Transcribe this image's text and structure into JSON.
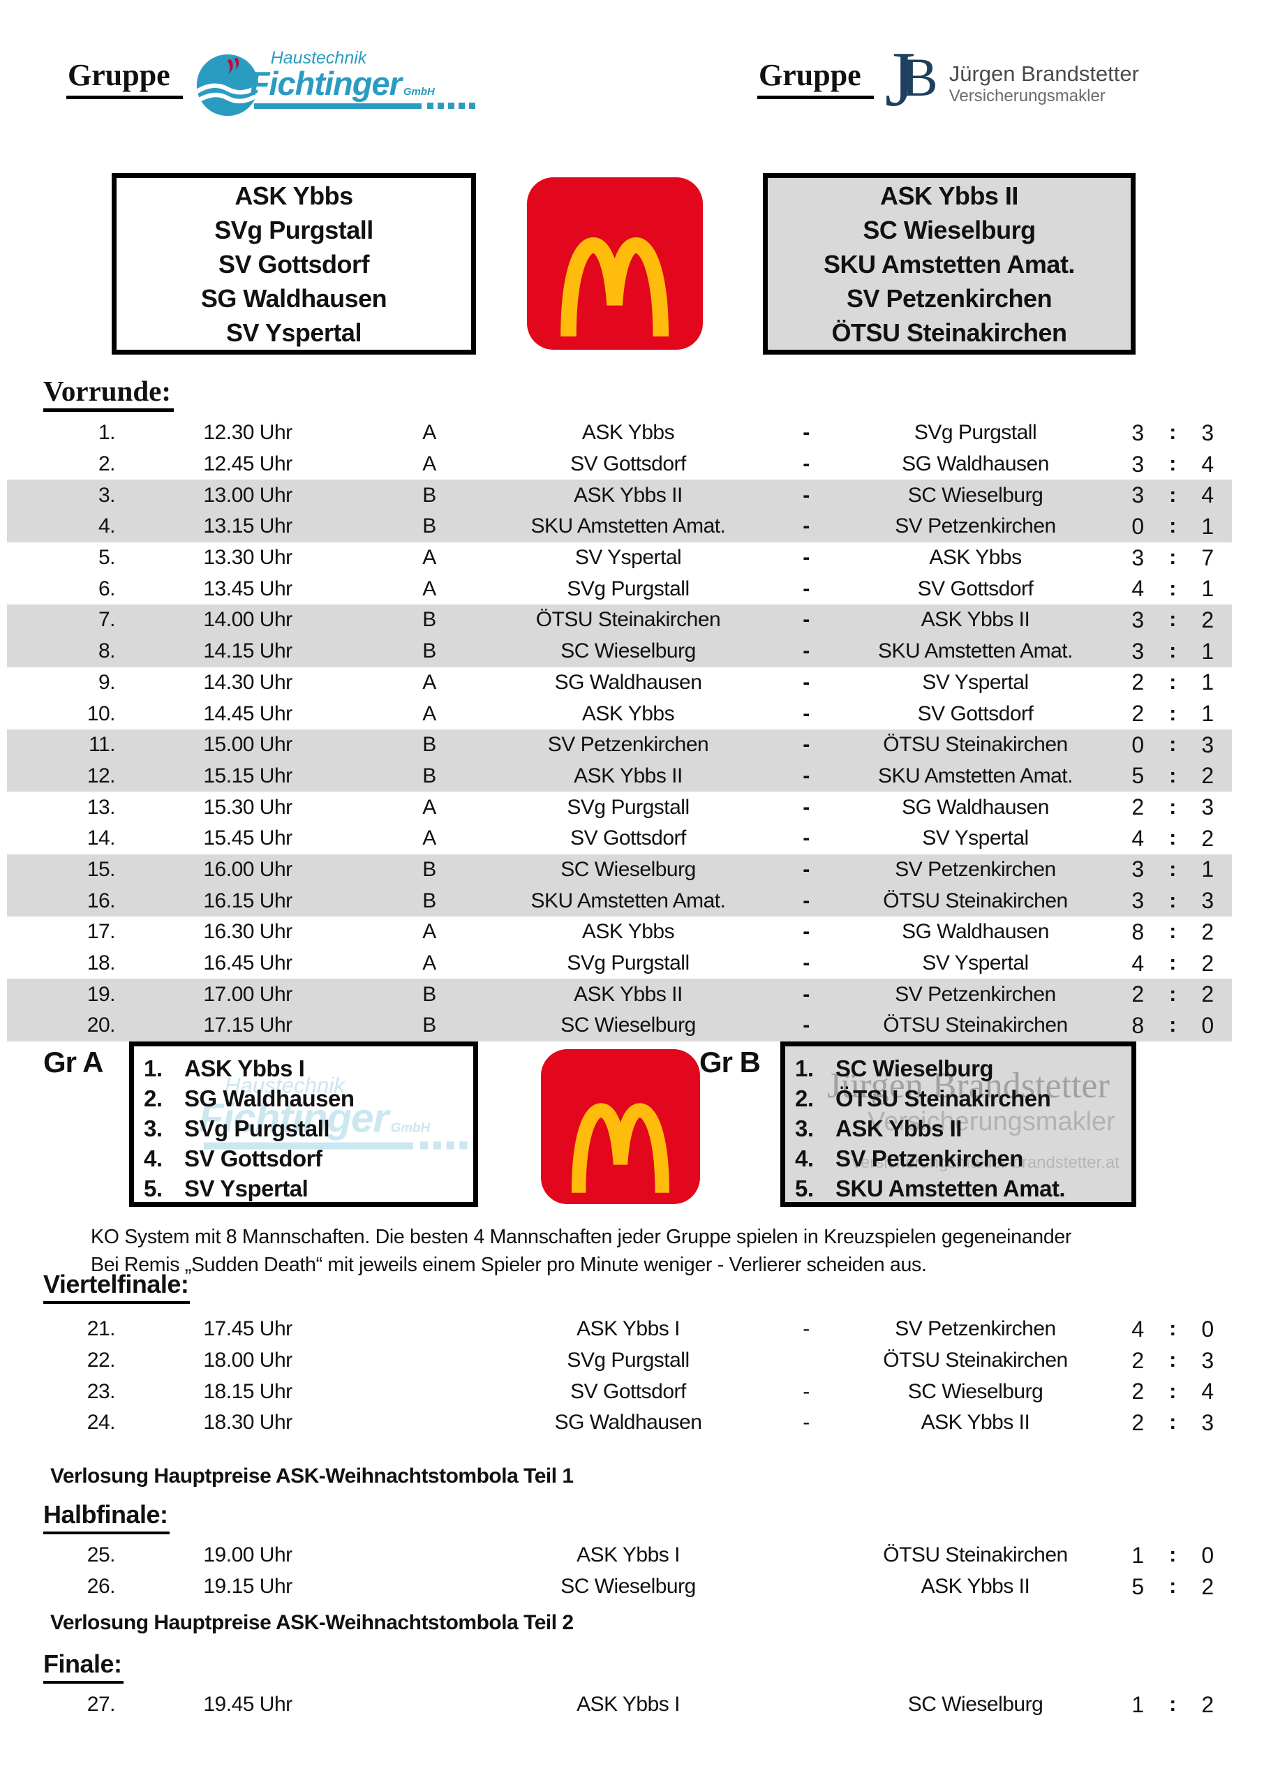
{
  "score_separator": ":",
  "colors": {
    "row_shade": "#d9d9d9",
    "mcdonalds_red": "#e2071c",
    "mcdonalds_yellow": "#ffbc0d",
    "fichtinger_blue": "#2a9cc2",
    "fichtinger_red": "#c00934",
    "jb_navy": "#1e3f5e",
    "watermark_blue": "#8ecbe0",
    "watermark_gray": "#8f8f8f",
    "text_black": "#111111"
  },
  "header": {
    "left": {
      "label": "Gruppe",
      "sponsor_line1": "Haustechnik",
      "sponsor_name": "Fichtinger",
      "sponsor_suffix": "GmbH"
    },
    "right": {
      "label": "Gruppe",
      "monogram_j": "J",
      "monogram_b": "B",
      "sponsor_name": "Jürgen Brandstetter",
      "sponsor_subtitle": "Versicherungsmakler"
    }
  },
  "group_boxes": {
    "a": [
      "ASK Ybbs",
      "SVg Purgstall",
      "SV Gottsdorf",
      "SG Waldhausen",
      "SV Yspertal"
    ],
    "b": [
      "ASK Ybbs II",
      "SC Wieselburg",
      "SKU Amstetten Amat.",
      "SV Petzenkirchen",
      "ÖTSU Steinakirchen"
    ]
  },
  "vorrunde": {
    "title": "Vorrunde:",
    "matches": [
      {
        "no": "1.",
        "time": "12.30 Uhr",
        "group": "A",
        "home": "ASK Ybbs",
        "sep": "-",
        "away": "SVg Purgstall",
        "s1": "3",
        "s2": "3"
      },
      {
        "no": "2.",
        "time": "12.45 Uhr",
        "group": "A",
        "home": "SV Gottsdorf",
        "sep": "-",
        "away": "SG Waldhausen",
        "s1": "3",
        "s2": "4"
      },
      {
        "no": "3.",
        "time": "13.00 Uhr",
        "group": "B",
        "home": "ASK Ybbs II",
        "sep": "-",
        "away": "SC Wieselburg",
        "s1": "3",
        "s2": "4"
      },
      {
        "no": "4.",
        "time": "13.15 Uhr",
        "group": "B",
        "home": "SKU Amstetten Amat.",
        "sep": "-",
        "away": "SV Petzenkirchen",
        "s1": "0",
        "s2": "1"
      },
      {
        "no": "5.",
        "time": "13.30 Uhr",
        "group": "A",
        "home": "SV Yspertal",
        "sep": "-",
        "away": "ASK Ybbs",
        "s1": "3",
        "s2": "7"
      },
      {
        "no": "6.",
        "time": "13.45 Uhr",
        "group": "A",
        "home": "SVg Purgstall",
        "sep": "-",
        "away": "SV Gottsdorf",
        "s1": "4",
        "s2": "1"
      },
      {
        "no": "7.",
        "time": "14.00 Uhr",
        "group": "B",
        "home": "ÖTSU Steinakirchen",
        "sep": "-",
        "away": "ASK Ybbs II",
        "s1": "3",
        "s2": "2"
      },
      {
        "no": "8.",
        "time": "14.15 Uhr",
        "group": "B",
        "home": "SC Wieselburg",
        "sep": "-",
        "away": "SKU Amstetten Amat.",
        "s1": "3",
        "s2": "1"
      },
      {
        "no": "9.",
        "time": "14.30 Uhr",
        "group": "A",
        "home": "SG Waldhausen",
        "sep": "-",
        "away": "SV Yspertal",
        "s1": "2",
        "s2": "1"
      },
      {
        "no": "10.",
        "time": "14.45 Uhr",
        "group": "A",
        "home": "ASK Ybbs",
        "sep": "-",
        "away": "SV Gottsdorf",
        "s1": "2",
        "s2": "1"
      },
      {
        "no": "11.",
        "time": "15.00 Uhr",
        "group": "B",
        "home": "SV Petzenkirchen",
        "sep": "-",
        "away": "ÖTSU Steinakirchen",
        "s1": "0",
        "s2": "3"
      },
      {
        "no": "12.",
        "time": "15.15 Uhr",
        "group": "B",
        "home": "ASK Ybbs II",
        "sep": "-",
        "away": "SKU Amstetten Amat.",
        "s1": "5",
        "s2": "2"
      },
      {
        "no": "13.",
        "time": "15.30 Uhr",
        "group": "A",
        "home": "SVg Purgstall",
        "sep": "-",
        "away": "SG Waldhausen",
        "s1": "2",
        "s2": "3"
      },
      {
        "no": "14.",
        "time": "15.45 Uhr",
        "group": "A",
        "home": "SV Gottsdorf",
        "sep": "-",
        "away": "SV Yspertal",
        "s1": "4",
        "s2": "2"
      },
      {
        "no": "15.",
        "time": "16.00 Uhr",
        "group": "B",
        "home": "SC Wieselburg",
        "sep": "-",
        "away": "SV Petzenkirchen",
        "s1": "3",
        "s2": "1"
      },
      {
        "no": "16.",
        "time": "16.15 Uhr",
        "group": "B",
        "home": "SKU Amstetten Amat.",
        "sep": "-",
        "away": "ÖTSU Steinakirchen",
        "s1": "3",
        "s2": "3"
      },
      {
        "no": "17.",
        "time": "16.30 Uhr",
        "group": "A",
        "home": "ASK Ybbs",
        "sep": "-",
        "away": "SG Waldhausen",
        "s1": "8",
        "s2": "2"
      },
      {
        "no": "18.",
        "time": "16.45 Uhr",
        "group": "A",
        "home": "SVg Purgstall",
        "sep": "-",
        "away": "SV Yspertal",
        "s1": "4",
        "s2": "2"
      },
      {
        "no": "19.",
        "time": "17.00 Uhr",
        "group": "B",
        "home": "ASK Ybbs II",
        "sep": "-",
        "away": "SV Petzenkirchen",
        "s1": "2",
        "s2": "2"
      },
      {
        "no": "20.",
        "time": "17.15 Uhr",
        "group": "B",
        "home": "SC Wieselburg",
        "sep": "-",
        "away": "ÖTSU Steinakirchen",
        "s1": "8",
        "s2": "0"
      }
    ]
  },
  "standings": {
    "gr_a_label": "Gr A",
    "gr_a": [
      {
        "no": "1.",
        "team": "ASK Ybbs I"
      },
      {
        "no": "2.",
        "team": "SG Waldhausen"
      },
      {
        "no": "3.",
        "team": "SVg Purgstall"
      },
      {
        "no": "4.",
        "team": "SV Gottsdorf"
      },
      {
        "no": "5.",
        "team": "SV Yspertal"
      }
    ],
    "gr_b_label": "Gr B",
    "gr_b": [
      {
        "no": "1.",
        "team": "SC Wieselburg"
      },
      {
        "no": "2.",
        "team": "ÖTSU Steinakirchen"
      },
      {
        "no": "3.",
        "team": "ASK Ybbs II"
      },
      {
        "no": "4.",
        "team": "SV Petzenkirchen"
      },
      {
        "no": "5.",
        "team": "SKU Amstetten Amat."
      }
    ],
    "watermark_b": {
      "line1": "Jürgen Brandstetter",
      "line2": "Versicherungsmakler",
      "line3": "versicherungsmakler-brandstetter.at"
    }
  },
  "ko_note": {
    "line1": "KO System mit 8 Mannschaften. Die besten 4 Mannschaften jeder Gruppe spielen in Kreuzspielen gegeneinander",
    "line2": "Bei Remis „Sudden Death“ mit jeweils einem Spieler pro Minute weniger - Verlierer scheiden aus."
  },
  "viertelfinale": {
    "title": "Viertelfinale:",
    "matches": [
      {
        "no": "21.",
        "time": "17.45 Uhr",
        "group": "",
        "home": "ASK Ybbs I",
        "sep": "-",
        "away": "SV Petzenkirchen",
        "s1": "4",
        "s2": "0"
      },
      {
        "no": "22.",
        "time": "18.00 Uhr",
        "group": "",
        "home": "SVg Purgstall",
        "sep": "",
        "away": "ÖTSU Steinakirchen",
        "s1": "2",
        "s2": "3"
      },
      {
        "no": "23.",
        "time": "18.15 Uhr",
        "group": "",
        "home": "SV Gottsdorf",
        "sep": "-",
        "away": "SC Wieselburg",
        "s1": "2",
        "s2": "4"
      },
      {
        "no": "24.",
        "time": "18.30 Uhr",
        "group": "",
        "home": "SG Waldhausen",
        "sep": "-",
        "away": "ASK Ybbs II",
        "s1": "2",
        "s2": "3"
      }
    ]
  },
  "verlosung": {
    "teil1": "Verlosung Hauptpreise ASK-Weihnachtstombola Teil 1",
    "teil2": "Verlosung Hauptpreise ASK-Weihnachtstombola Teil 2"
  },
  "halbfinale": {
    "title": "Halbfinale:",
    "matches": [
      {
        "no": "25.",
        "time": "19.00 Uhr",
        "group": "",
        "home": "ASK Ybbs I",
        "sep": "",
        "away": "ÖTSU Steinakirchen",
        "s1": "1",
        "s2": "0"
      },
      {
        "no": "26.",
        "time": "19.15 Uhr",
        "group": "",
        "home": "SC Wieselburg",
        "sep": "",
        "away": "ASK Ybbs II",
        "s1": "5",
        "s2": "2"
      }
    ]
  },
  "finale": {
    "title": "Finale:",
    "matches": [
      {
        "no": "27.",
        "time": "19.45 Uhr",
        "group": "",
        "home": "ASK Ybbs I",
        "sep": "",
        "away": "SC Wieselburg",
        "s1": "1",
        "s2": "2"
      }
    ]
  }
}
